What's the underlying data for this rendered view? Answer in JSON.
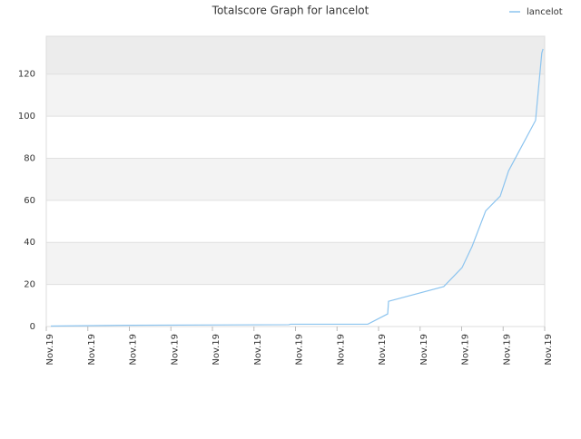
{
  "chart_data": {
    "type": "line",
    "title": "Totalscore Graph for lancelot",
    "x": [
      0.11,
      1.99,
      5.84,
      5.88,
      7.74,
      8.22,
      8.24,
      9.57,
      10.01,
      10.25,
      10.58,
      10.93,
      11.13,
      11.78,
      11.93,
      11.96
    ],
    "series": [
      {
        "name": "lancelot",
        "color": "#8cc4ef",
        "values": [
          0.2,
          0.6,
          0.9,
          1.1,
          1.1,
          6,
          12,
          19,
          28,
          38,
          55,
          62,
          74,
          98,
          130,
          132
        ]
      }
    ],
    "xlim": [
      0,
      12
    ],
    "xticks": [
      {
        "value": 0,
        "label": "Nov.19"
      },
      {
        "value": 1,
        "label": "Nov.19"
      },
      {
        "value": 2,
        "label": "Nov.19"
      },
      {
        "value": 3,
        "label": "Nov.19"
      },
      {
        "value": 4,
        "label": "Nov.19"
      },
      {
        "value": 5,
        "label": "Nov.19"
      },
      {
        "value": 6,
        "label": "Nov.19"
      },
      {
        "value": 7,
        "label": "Nov.19"
      },
      {
        "value": 8,
        "label": "Nov.19"
      },
      {
        "value": 9,
        "label": "Nov.19"
      },
      {
        "value": 10,
        "label": "Nov.19"
      },
      {
        "value": 11,
        "label": "Nov.19"
      },
      {
        "value": 12,
        "label": "Nov.19"
      }
    ],
    "ylim": [
      0,
      138
    ],
    "yticks": [
      0,
      20,
      40,
      60,
      80,
      100,
      120
    ],
    "grid": true,
    "legend": "top-right"
  }
}
